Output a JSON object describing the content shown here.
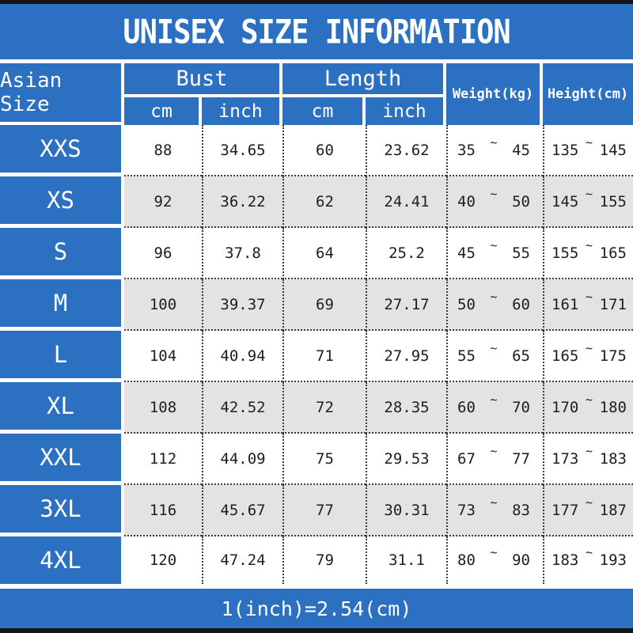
{
  "title": "UNISEX SIZE INFORMATION",
  "footer_note": "1(inch)=2.54(cm)",
  "colors": {
    "banner_blue": "#2b70c1",
    "row_alt_gray": "#e5e3e2",
    "bar_black": "#141414",
    "text_dark": "#1e1e1e",
    "header_text": "#ffffff"
  },
  "chart_data": {
    "type": "table",
    "title": "UNISEX SIZE INFORMATION",
    "range_separator": "~",
    "headers": {
      "size_column": "Asian Size",
      "bust_group": "Bust",
      "length_group": "Length",
      "unit_cm": "cm",
      "unit_inch": "inch",
      "weight": "Weight(kg)",
      "height": "Height(cm)"
    },
    "rows": [
      {
        "size": "XXS",
        "bust_cm": 88,
        "bust_inch": 34.65,
        "length_cm": 60,
        "length_inch": 23.62,
        "weight_min": 35,
        "weight_max": 45,
        "height_min": 135,
        "height_max": 145
      },
      {
        "size": "XS",
        "bust_cm": 92,
        "bust_inch": 36.22,
        "length_cm": 62,
        "length_inch": 24.41,
        "weight_min": 40,
        "weight_max": 50,
        "height_min": 145,
        "height_max": 155
      },
      {
        "size": "S",
        "bust_cm": 96,
        "bust_inch": 37.8,
        "length_cm": 64,
        "length_inch": 25.2,
        "weight_min": 45,
        "weight_max": 55,
        "height_min": 155,
        "height_max": 165
      },
      {
        "size": "M",
        "bust_cm": 100,
        "bust_inch": 39.37,
        "length_cm": 69,
        "length_inch": 27.17,
        "weight_min": 50,
        "weight_max": 60,
        "height_min": 161,
        "height_max": 171
      },
      {
        "size": "L",
        "bust_cm": 104,
        "bust_inch": 40.94,
        "length_cm": 71,
        "length_inch": 27.95,
        "weight_min": 55,
        "weight_max": 65,
        "height_min": 165,
        "height_max": 175
      },
      {
        "size": "XL",
        "bust_cm": 108,
        "bust_inch": 42.52,
        "length_cm": 72,
        "length_inch": 28.35,
        "weight_min": 60,
        "weight_max": 70,
        "height_min": 170,
        "height_max": 180
      },
      {
        "size": "XXL",
        "bust_cm": 112,
        "bust_inch": 44.09,
        "length_cm": 75,
        "length_inch": 29.53,
        "weight_min": 67,
        "weight_max": 77,
        "height_min": 173,
        "height_max": 183
      },
      {
        "size": "3XL",
        "bust_cm": 116,
        "bust_inch": 45.67,
        "length_cm": 77,
        "length_inch": 30.31,
        "weight_min": 73,
        "weight_max": 83,
        "height_min": 177,
        "height_max": 187
      },
      {
        "size": "4XL",
        "bust_cm": 120,
        "bust_inch": 47.24,
        "length_cm": 79,
        "length_inch": 31.1,
        "weight_min": 80,
        "weight_max": 90,
        "height_min": 183,
        "height_max": 193
      }
    ],
    "footnote": "1(inch)=2.54(cm)"
  }
}
